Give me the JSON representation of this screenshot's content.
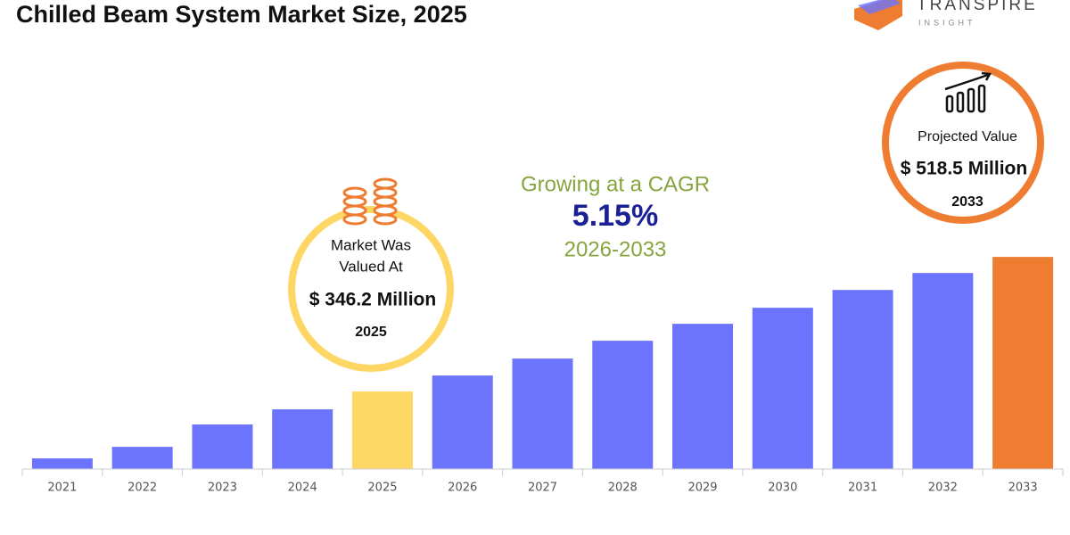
{
  "chart_data": {
    "type": "bar",
    "title": "Chilled Beam System Market Size, 2025",
    "categories": [
      "2021",
      "2022",
      "2023",
      "2024",
      "2025",
      "2026",
      "2027",
      "2028",
      "2029",
      "2030",
      "2031",
      "2032",
      "2033"
    ],
    "values": [
      260.6,
      275.4,
      304,
      323.4,
      346.2,
      366.7,
      388.4,
      411.2,
      432.9,
      453.4,
      476.2,
      497.9,
      518.5
    ],
    "colors": [
      "#6c74fd",
      "#6c74fd",
      "#6c74fd",
      "#6c74fd",
      "#fdd663",
      "#6c74fd",
      "#6c74fd",
      "#6c74fd",
      "#6c74fd",
      "#6c74fd",
      "#6c74fd",
      "#6c74fd",
      "#ef7d31"
    ],
    "ylim": [
      247,
      780
    ],
    "growth": {
      "lead": "Growing at a CAGR",
      "rate": "5.15%",
      "period": "2026-2033"
    },
    "callout_left": {
      "lines": [
        "Market Was",
        "Valued At"
      ],
      "value": "$ 346.2 Million",
      "year": "2025"
    },
    "callout_right": {
      "label": "Projected Value",
      "value": "$ 518.5 Million",
      "year": "2033"
    },
    "logo": {
      "name": "TRANSPIRE",
      "tagline": "INSIGHT"
    }
  }
}
